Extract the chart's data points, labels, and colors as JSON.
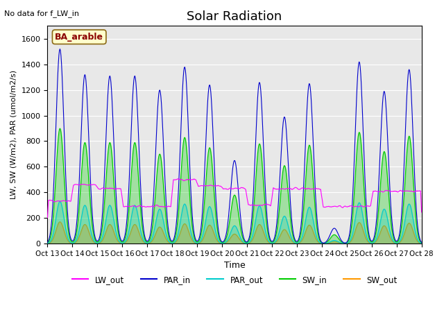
{
  "title": "Solar Radiation",
  "subtitle": "No data for f_LW_in",
  "xlabel": "Time",
  "ylabel": "LW, SW (W/m2), PAR (umol/m2/s)",
  "site_label": "BA_arable",
  "ylim": [
    0,
    1700
  ],
  "yticks": [
    0,
    200,
    400,
    600,
    800,
    1000,
    1200,
    1400,
    1600
  ],
  "xtick_labels": [
    "Oct 13",
    "Oct 14",
    "Oct 15",
    "Oct 16",
    "Oct 17",
    "Oct 18",
    "Oct 19",
    "Oct 20",
    "Oct 21",
    "Oct 22",
    "Oct 23",
    "Oct 24",
    "Oct 25",
    "Oct 26",
    "Oct 27",
    "Oct 28"
  ],
  "n_days": 15,
  "colors": {
    "LW_out": "#ff00ff",
    "PAR_in": "#0000cc",
    "PAR_out": "#00cccc",
    "SW_in": "#00cc00",
    "SW_out": "#ff9900"
  },
  "background_color": "#e8e8e8",
  "PAR_in_peaks": [
    1520,
    1320,
    1310,
    1310,
    1200,
    1380,
    1240,
    650,
    1260,
    990,
    1250,
    120,
    1420,
    1190,
    1360
  ],
  "SW_in_peaks": [
    900,
    790,
    790,
    790,
    700,
    830,
    750,
    380,
    780,
    610,
    770,
    70,
    870,
    720,
    840
  ],
  "SW_out_peaks": [
    170,
    150,
    150,
    150,
    130,
    155,
    145,
    75,
    150,
    110,
    145,
    15,
    165,
    140,
    160
  ],
  "PAR_out_peaks": [
    330,
    300,
    300,
    300,
    270,
    310,
    290,
    140,
    295,
    215,
    285,
    25,
    320,
    270,
    310
  ],
  "LW_out_variation": [
    335,
    460,
    430,
    290,
    290,
    500,
    450,
    430,
    300,
    430,
    430,
    290,
    290,
    410,
    410
  ]
}
